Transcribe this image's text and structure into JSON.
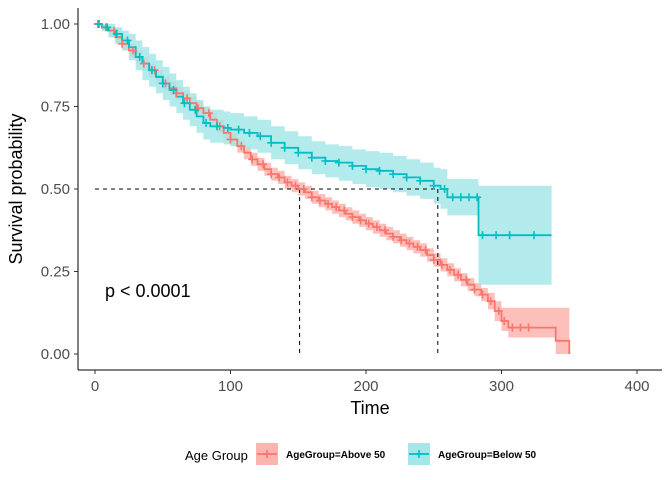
{
  "chart_data": {
    "type": "line",
    "subtype": "kaplan-meier survival curve",
    "title": "",
    "xlabel": "Time",
    "ylabel": "Survival probability",
    "xlim": [
      0,
      400
    ],
    "ylim": [
      0,
      1
    ],
    "x_ticks": [
      "0",
      "100",
      "200",
      "300",
      "400"
    ],
    "y_ticks": [
      "0.00",
      "0.25",
      "0.50",
      "0.75",
      "1.00"
    ],
    "grid": false,
    "annotation": "p < 0.0001",
    "median_lines": [
      {
        "series": "AgeGroup=Above 50",
        "x": 151,
        "y": 0.5
      },
      {
        "series": "AgeGroup=Below 50",
        "x": 253,
        "y": 0.5
      }
    ],
    "legend": {
      "title": "Age Group",
      "position": "bottom"
    },
    "series": [
      {
        "name": "AgeGroup=Above 50",
        "color": "#F8766D",
        "fill": "#FBB4AE",
        "x": [
          0,
          5,
          10,
          15,
          20,
          25,
          30,
          35,
          40,
          45,
          50,
          55,
          60,
          65,
          70,
          75,
          80,
          85,
          90,
          95,
          100,
          105,
          110,
          115,
          120,
          125,
          130,
          135,
          140,
          145,
          150,
          155,
          160,
          165,
          170,
          175,
          180,
          185,
          190,
          195,
          200,
          205,
          210,
          215,
          220,
          225,
          230,
          235,
          240,
          245,
          250,
          255,
          260,
          265,
          270,
          275,
          280,
          285,
          290,
          295,
          300,
          305,
          310,
          315,
          320,
          325,
          330,
          335,
          340,
          345,
          350
        ],
        "y": [
          1.0,
          0.99,
          0.98,
          0.96,
          0.94,
          0.92,
          0.9,
          0.88,
          0.86,
          0.84,
          0.82,
          0.805,
          0.79,
          0.775,
          0.76,
          0.745,
          0.73,
          0.71,
          0.69,
          0.67,
          0.65,
          0.63,
          0.61,
          0.59,
          0.575,
          0.56,
          0.545,
          0.535,
          0.52,
          0.51,
          0.5,
          0.49,
          0.475,
          0.465,
          0.455,
          0.445,
          0.435,
          0.425,
          0.415,
          0.405,
          0.395,
          0.385,
          0.375,
          0.365,
          0.355,
          0.345,
          0.335,
          0.325,
          0.315,
          0.3,
          0.285,
          0.27,
          0.255,
          0.24,
          0.225,
          0.21,
          0.195,
          0.18,
          0.16,
          0.13,
          0.1,
          0.08,
          0.08,
          0.08,
          0.08,
          0.08,
          0.08,
          0.08,
          0.04,
          0.04,
          0.0
        ],
        "lower": [
          1.0,
          0.98,
          0.96,
          0.94,
          0.92,
          0.9,
          0.88,
          0.86,
          0.84,
          0.82,
          0.8,
          0.785,
          0.77,
          0.755,
          0.74,
          0.725,
          0.71,
          0.69,
          0.67,
          0.65,
          0.63,
          0.61,
          0.59,
          0.57,
          0.555,
          0.54,
          0.525,
          0.515,
          0.5,
          0.49,
          0.48,
          0.47,
          0.455,
          0.445,
          0.435,
          0.425,
          0.415,
          0.405,
          0.395,
          0.385,
          0.375,
          0.365,
          0.355,
          0.345,
          0.335,
          0.325,
          0.315,
          0.305,
          0.295,
          0.28,
          0.265,
          0.25,
          0.235,
          0.22,
          0.205,
          0.19,
          0.175,
          0.16,
          0.135,
          0.1,
          0.07,
          0.05,
          0.05,
          0.05,
          0.05,
          0.05,
          0.05,
          0.05,
          0.0,
          0.0,
          0.0
        ],
        "upper": [
          1.0,
          1.0,
          0.99,
          0.98,
          0.96,
          0.94,
          0.92,
          0.9,
          0.88,
          0.86,
          0.84,
          0.825,
          0.81,
          0.795,
          0.78,
          0.765,
          0.75,
          0.73,
          0.71,
          0.69,
          0.67,
          0.65,
          0.63,
          0.61,
          0.595,
          0.58,
          0.565,
          0.555,
          0.54,
          0.53,
          0.52,
          0.51,
          0.495,
          0.485,
          0.475,
          0.465,
          0.455,
          0.445,
          0.435,
          0.425,
          0.415,
          0.405,
          0.395,
          0.385,
          0.375,
          0.365,
          0.355,
          0.345,
          0.335,
          0.32,
          0.305,
          0.29,
          0.275,
          0.26,
          0.245,
          0.23,
          0.215,
          0.2,
          0.185,
          0.16,
          0.14,
          0.14,
          0.14,
          0.14,
          0.14,
          0.14,
          0.14,
          0.14,
          0.14,
          0.14,
          0.14
        ]
      },
      {
        "name": "AgeGroup=Below 50",
        "color": "#00BFC4",
        "fill": "#A6E6E8",
        "x": [
          0,
          5,
          10,
          15,
          20,
          25,
          30,
          35,
          40,
          45,
          50,
          55,
          60,
          65,
          70,
          75,
          80,
          85,
          90,
          95,
          100,
          110,
          120,
          130,
          140,
          150,
          160,
          170,
          180,
          190,
          200,
          210,
          220,
          230,
          240,
          250,
          255,
          260,
          270,
          280,
          283,
          290,
          300,
          310,
          320,
          330,
          337
        ],
        "y": [
          1.0,
          0.99,
          0.98,
          0.97,
          0.95,
          0.93,
          0.9,
          0.88,
          0.86,
          0.84,
          0.82,
          0.8,
          0.78,
          0.76,
          0.74,
          0.72,
          0.7,
          0.69,
          0.69,
          0.685,
          0.68,
          0.67,
          0.66,
          0.64,
          0.625,
          0.61,
          0.595,
          0.585,
          0.58,
          0.57,
          0.56,
          0.555,
          0.545,
          0.535,
          0.525,
          0.51,
          0.5,
          0.475,
          0.475,
          0.475,
          0.36,
          0.36,
          0.36,
          0.36,
          0.36,
          0.36,
          0.36
        ],
        "lower": [
          1.0,
          0.98,
          0.96,
          0.94,
          0.92,
          0.89,
          0.86,
          0.83,
          0.81,
          0.79,
          0.77,
          0.75,
          0.73,
          0.71,
          0.69,
          0.67,
          0.65,
          0.64,
          0.64,
          0.635,
          0.63,
          0.62,
          0.61,
          0.59,
          0.575,
          0.56,
          0.545,
          0.535,
          0.525,
          0.515,
          0.505,
          0.5,
          0.49,
          0.48,
          0.47,
          0.455,
          0.44,
          0.42,
          0.42,
          0.42,
          0.21,
          0.21,
          0.21,
          0.21,
          0.21,
          0.21,
          0.21
        ],
        "upper": [
          1.0,
          1.0,
          1.0,
          0.99,
          0.98,
          0.97,
          0.95,
          0.93,
          0.91,
          0.89,
          0.87,
          0.85,
          0.83,
          0.81,
          0.79,
          0.77,
          0.75,
          0.74,
          0.74,
          0.735,
          0.73,
          0.72,
          0.71,
          0.69,
          0.675,
          0.66,
          0.645,
          0.635,
          0.63,
          0.62,
          0.615,
          0.61,
          0.6,
          0.59,
          0.58,
          0.565,
          0.56,
          0.53,
          0.53,
          0.53,
          0.51,
          0.51,
          0.51,
          0.51,
          0.51,
          0.51,
          0.51
        ]
      }
    ],
    "censor_marks": {
      "AgeGroup=Above 50": [
        2,
        8,
        14,
        20,
        28,
        36,
        44,
        52,
        60,
        68,
        76,
        84,
        92,
        100,
        108,
        116,
        124,
        130,
        136,
        142,
        148,
        154,
        160,
        166,
        172,
        178,
        184,
        190,
        196,
        202,
        208,
        214,
        220,
        226,
        232,
        238,
        244,
        250,
        256,
        262,
        268,
        274,
        280,
        286,
        292,
        298,
        302,
        308,
        314,
        320
      ],
      "AgeGroup=Below 50": [
        3,
        9,
        16,
        24,
        33,
        42,
        50,
        58,
        66,
        74,
        82,
        90,
        98,
        106,
        114,
        122,
        130,
        140,
        150,
        160,
        170,
        180,
        190,
        200,
        210,
        220,
        230,
        240,
        250,
        258,
        264,
        270,
        276,
        282,
        286,
        296,
        306,
        324
      ]
    }
  }
}
